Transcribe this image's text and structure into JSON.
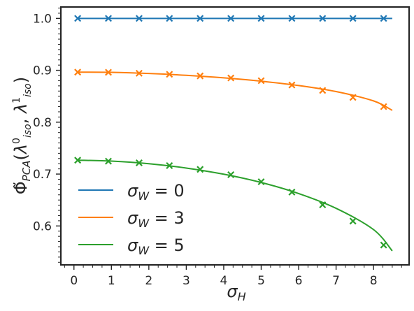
{
  "chart_data": {
    "type": "line",
    "title": "",
    "xlabel": "σ_H",
    "ylabel": "Φ̃_PCA(λ⁰_iso, λ¹_iso)",
    "xlim": [
      -0.35,
      8.95
    ],
    "ylim": [
      0.525,
      1.022
    ],
    "xticks": [
      0,
      1,
      2,
      3,
      4,
      5,
      6,
      7,
      8
    ],
    "yticks": [
      0.6,
      0.7,
      0.8,
      0.9,
      1.0
    ],
    "ytick_labels": [
      "0.6",
      "0.7",
      "0.8",
      "0.9",
      "1.0"
    ],
    "grid": false,
    "legend_position": "lower-left",
    "markers_x": [
      0.1,
      0.92,
      1.74,
      2.55,
      3.37,
      4.19,
      5.0,
      5.82,
      6.64,
      7.45,
      8.27
    ],
    "series": [
      {
        "name": "σ_W = 0",
        "color": "#1f77b4",
        "line": {
          "x": [
            0.1,
            8.5
          ],
          "y": [
            1.0,
            1.0
          ]
        },
        "markers_y": [
          1.0,
          1.0,
          1.0,
          1.0,
          1.0,
          1.0,
          1.0,
          1.0,
          1.0,
          1.0,
          1.0
        ]
      },
      {
        "name": "σ_W = 3",
        "color": "#ff7f0e",
        "line": {
          "x": [
            0.1,
            1.0,
            2.0,
            3.0,
            4.0,
            5.0,
            6.0,
            7.0,
            8.0,
            8.5
          ],
          "y": [
            0.8964,
            0.896,
            0.8938,
            0.8903,
            0.8854,
            0.879,
            0.8706,
            0.859,
            0.841,
            0.8228
          ]
        },
        "markers_y": [
          0.8964,
          0.8961,
          0.8943,
          0.8923,
          0.8892,
          0.8852,
          0.88,
          0.8716,
          0.8612,
          0.8478,
          0.83
        ]
      },
      {
        "name": "σ_W = 5",
        "color": "#2ca02c",
        "line": {
          "x": [
            0.1,
            1.0,
            2.0,
            3.0,
            4.0,
            5.0,
            6.0,
            7.0,
            8.0,
            8.5
          ],
          "y": [
            0.7267,
            0.725,
            0.72,
            0.7116,
            0.6997,
            0.6838,
            0.6625,
            0.634,
            0.593,
            0.552
          ]
        },
        "markers_y": [
          0.7267,
          0.7248,
          0.7216,
          0.7163,
          0.709,
          0.6988,
          0.6852,
          0.6652,
          0.6408,
          0.6094,
          0.5632
        ]
      }
    ]
  }
}
